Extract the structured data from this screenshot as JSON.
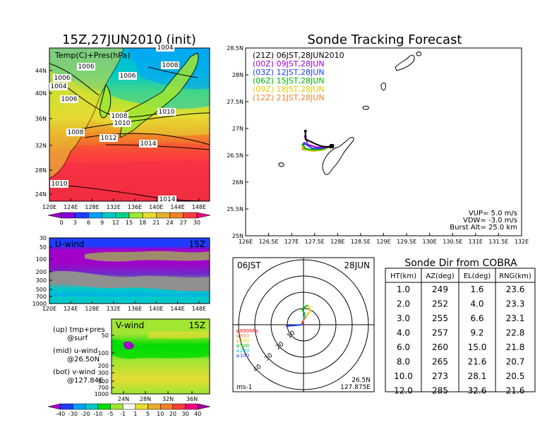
{
  "chart_data": [
    {
      "type": "heatmap",
      "id": "temp-map",
      "title": "15Z,27JUN2010 (init)",
      "label": "Temp(C)+Pres(hPa)",
      "x_ticks": [
        "120E",
        "124E",
        "128E",
        "132E",
        "136E",
        "140E",
        "144E",
        "148E"
      ],
      "y_ticks": [
        "24N",
        "28N",
        "32N",
        "36N",
        "40N",
        "44N"
      ],
      "contour_labels": [
        "1004",
        "1006",
        "1006",
        "1004",
        "1006",
        "1008",
        "1006",
        "1008",
        "1010",
        "1010",
        "1008",
        "1012",
        "1014",
        "1010",
        "1014"
      ],
      "colorbar_ticks": [
        "0",
        "3",
        "6",
        "9",
        "12",
        "15",
        "18",
        "21",
        "24",
        "27",
        "30"
      ],
      "colorbar_colors": [
        "#a000c8",
        "#8200dc",
        "#1e3cff",
        "#00a0ff",
        "#00c8c8",
        "#00d28c",
        "#a0e632",
        "#e6dc32",
        "#e6af2d",
        "#f08228",
        "#fa3c3c",
        "#f00082"
      ]
    },
    {
      "type": "heatmap",
      "id": "u-wind",
      "label": "U-wind",
      "time": "15Z",
      "y_ticks": [
        "30",
        "50",
        "100",
        "200",
        "300",
        "500",
        "700",
        "1000"
      ],
      "x_ticks": [
        "120E",
        "124E",
        "128E",
        "132E",
        "136E",
        "140E",
        "144E",
        "148E"
      ]
    },
    {
      "type": "heatmap",
      "id": "v-wind",
      "label": "V-wind",
      "time": "15Z",
      "y_ticks": [
        "50",
        "100",
        "200",
        "300",
        "500",
        "700",
        "1000"
      ],
      "x_ticks": [
        "24N",
        "28N",
        "32N",
        "36N"
      ],
      "colorbar_ticks": [
        "-40",
        "-30",
        "-20",
        "-10",
        "-5",
        "-1",
        "1",
        "5",
        "10",
        "20",
        "30",
        "40"
      ],
      "colorbar_colors": [
        "#a000c8",
        "#1e3cff",
        "#00a0ff",
        "#00c8c8",
        "#00dc00",
        "#a0e632",
        "#ffffff",
        "#e6dc32",
        "#e6af2d",
        "#f08228",
        "#fa3c3c",
        "#f00082",
        "#a000a0"
      ],
      "notes": [
        {
          "line1": "(up) tmp+pres",
          "line2": "@surf"
        },
        {
          "line1": "(mid) u-wind",
          "line2": "@26.50N"
        },
        {
          "line1": "(bot) v-wind",
          "line2": "@127.84E"
        }
      ]
    },
    {
      "type": "line",
      "id": "track-map",
      "title": "Sonde Tracking Forecast",
      "x_ticks": [
        "126E",
        "126.5E",
        "127E",
        "127.5E",
        "128E",
        "128.5E",
        "129E",
        "129.5E",
        "130E",
        "130.5E",
        "131E",
        "131.5E",
        "132E"
      ],
      "y_ticks": [
        "25N",
        "25.5N",
        "26N",
        "26.5N",
        "27N",
        "27.5N",
        "28N",
        "28.5N"
      ],
      "legend": [
        {
          "label": "(21Z)  06JST,28JUN2010",
          "color": "#000000"
        },
        {
          "label": "(00Z)  09JST,28JUN",
          "color": "#a000c8"
        },
        {
          "label": "(03Z)  12JST,28JUN",
          "color": "#1e3cff"
        },
        {
          "label": "(06Z)  15JST,28JUN",
          "color": "#00b400"
        },
        {
          "label": "(09Z)  18JST,28JUN",
          "color": "#e6c800"
        },
        {
          "label": "(12Z)  21JST,28JUN",
          "color": "#f08228"
        }
      ],
      "series": [
        {
          "name": "(21Z)  06JST,28JUN2010",
          "lon": [
            127.84,
            127.84,
            127.65,
            127.55,
            127.3,
            127.3
          ],
          "lat": [
            26.67,
            26.65,
            26.67,
            26.7,
            26.8,
            26.95
          ]
        },
        {
          "name": "(00Z)  09JST,28JUN",
          "lon": [
            127.84,
            127.7,
            127.55,
            127.35,
            127.3
          ],
          "lat": [
            26.67,
            26.65,
            26.65,
            26.7,
            26.85
          ]
        },
        {
          "name": "(03Z)  12JST,28JUN",
          "lon": [
            127.84,
            127.65,
            127.45,
            127.28
          ],
          "lat": [
            26.67,
            26.63,
            26.63,
            26.72
          ]
        },
        {
          "name": "(06Z)  15JST,28JUN",
          "lon": [
            127.84,
            127.7,
            127.5,
            127.3,
            127.25
          ],
          "lat": [
            26.67,
            26.62,
            26.6,
            26.62,
            26.7
          ]
        },
        {
          "name": "(09Z)  18JST,28JUN",
          "lon": [
            127.84,
            127.7,
            127.5,
            127.3,
            127.25
          ],
          "lat": [
            26.67,
            26.6,
            26.58,
            26.6,
            26.66
          ]
        },
        {
          "name": "(12Z)  21JST,28JUN",
          "lon": [
            127.84,
            127.65,
            127.45,
            127.25
          ],
          "lat": [
            26.67,
            26.6,
            26.58,
            26.62
          ]
        }
      ],
      "launch_site": {
        "lon": 127.875,
        "lat": 26.5
      },
      "info": [
        "VUP=  5.0  m/s",
        "VDW= -3.0  m/s",
        "Burst Alt=  25.0  km"
      ]
    },
    {
      "type": "scatter",
      "id": "polar-plot",
      "left_label": "06JST",
      "right_label": "28JUN",
      "ring_labels": [
        "10",
        "20",
        "30",
        "40"
      ],
      "legend": [
        {
          "label": "≥850hPa",
          "color": "#fa0000"
        },
        {
          "label": "≤850",
          "color": "#f08228"
        },
        {
          "label": "≤700",
          "color": "#e6c800"
        },
        {
          "label": "≤500",
          "color": "#00b400"
        },
        {
          "label": "≤250",
          "color": "#00c8c8"
        },
        {
          "label": "≤100",
          "color": "#1e3cff"
        }
      ],
      "units": "ms-1",
      "coord_lat": "26.5N",
      "coord_lon": "127.875E"
    },
    {
      "type": "table",
      "id": "sonde-table",
      "title": "Sonde Dir from COBRA",
      "columns": [
        "HT(km)",
        "AZ(deg)",
        "EL(deg)",
        "RNG(km)"
      ],
      "rows": [
        [
          "1.0",
          "249",
          "1.6",
          "23.6"
        ],
        [
          "2.0",
          "252",
          "4.0",
          "23.3"
        ],
        [
          "3.0",
          "255",
          "6.6",
          "23.1"
        ],
        [
          "4.0",
          "257",
          "9.2",
          "22.8"
        ],
        [
          "6.0",
          "260",
          "15.0",
          "21.8"
        ],
        [
          "8.0",
          "265",
          "21.6",
          "20.7"
        ],
        [
          "10.0",
          "273",
          "28.1",
          "20.5"
        ],
        [
          "12.0",
          "285",
          "32.6",
          "21.6"
        ]
      ]
    }
  ]
}
